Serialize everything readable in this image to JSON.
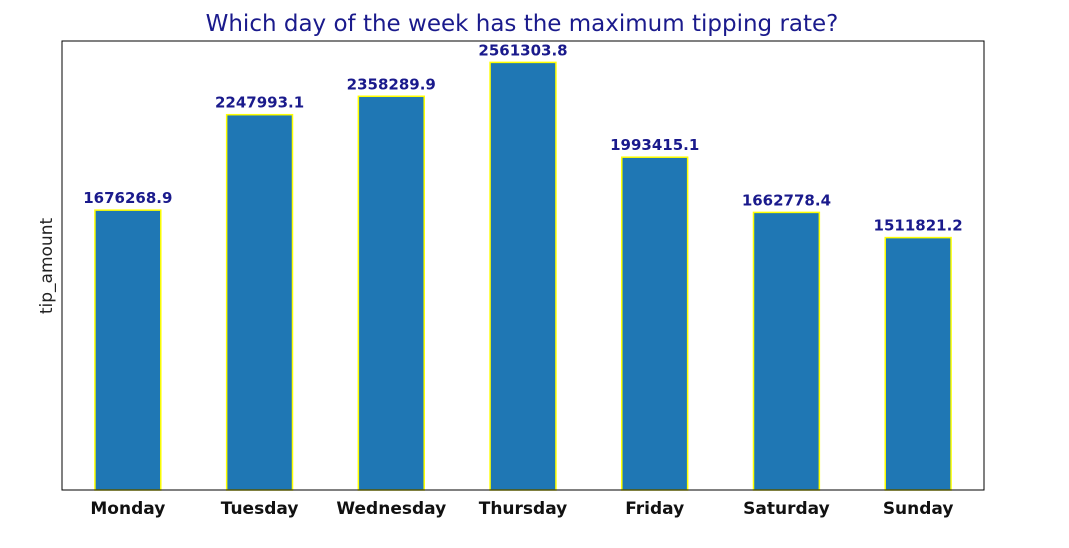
{
  "chart_data": {
    "type": "bar",
    "title": "Which day of the week has the maximum tipping rate?",
    "xlabel": "",
    "ylabel": "tip_amount",
    "categories": [
      "Monday",
      "Tuesday",
      "Wednesday",
      "Thursday",
      "Friday",
      "Saturday",
      "Sunday"
    ],
    "values": [
      1676268.9,
      2247993.1,
      2358289.9,
      2561303.8,
      1993415.1,
      1662778.4,
      1511821.2
    ],
    "data_labels": [
      "1676268.9",
      "2247993.1",
      "2358289.9",
      "2561303.8",
      "1993415.1",
      "1662778.4",
      "1511821.2"
    ],
    "ylim": [
      0,
      2689369
    ],
    "grid": false,
    "y_ticks_visible": false,
    "colors": {
      "bar_fill": "#1f77b4",
      "bar_edge": "#ffff00",
      "label": "#1a1a8c"
    }
  }
}
